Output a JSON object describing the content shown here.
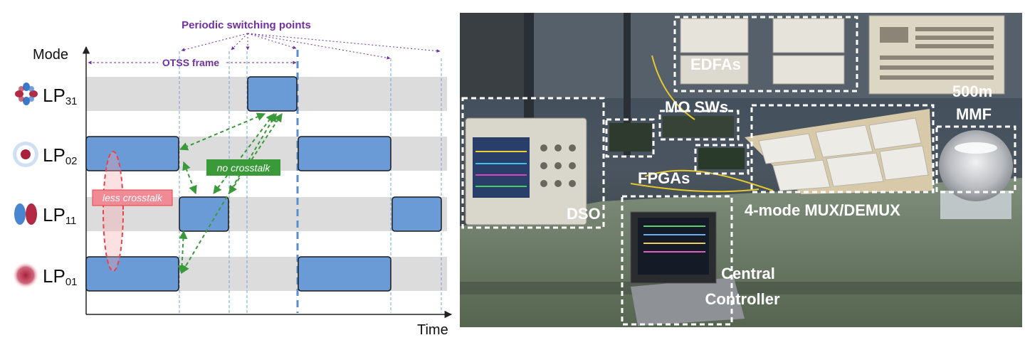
{
  "diagram": {
    "y_axis_label": "Mode",
    "x_axis_label": "Time",
    "header_annotation": "Periodic switching points",
    "frame_label": "OTSS frame",
    "modes": [
      {
        "base": "LP",
        "sub": "31"
      },
      {
        "base": "LP",
        "sub": "02"
      },
      {
        "base": "LP",
        "sub": "11"
      },
      {
        "base": "LP",
        "sub": "01"
      }
    ],
    "tags": {
      "less_crosstalk": "less crosstalk",
      "no_crosstalk": "no crosstalk"
    },
    "colors": {
      "slot_fill": "#6b9bd6",
      "lane": "#dcdcdc",
      "annotation_purple": "#7030a0",
      "no_crosstalk_green": "#3a9a3a",
      "less_crosstalk_red": "#e8434a",
      "less_crosstalk_fill": "#f5a6ad",
      "frame_dash": "#6fa0d8"
    }
  },
  "photo": {
    "labels": {
      "edfas": "EDFAs",
      "mo_sws": "MO SWs",
      "mmf_line1": "500m",
      "mmf_line2": "MMF",
      "fpgas": "FPGAs",
      "dso": "DSO",
      "mux": "4-mode MUX/DEMUX",
      "controller_line1": "Central",
      "controller_line2": "Controller"
    }
  }
}
